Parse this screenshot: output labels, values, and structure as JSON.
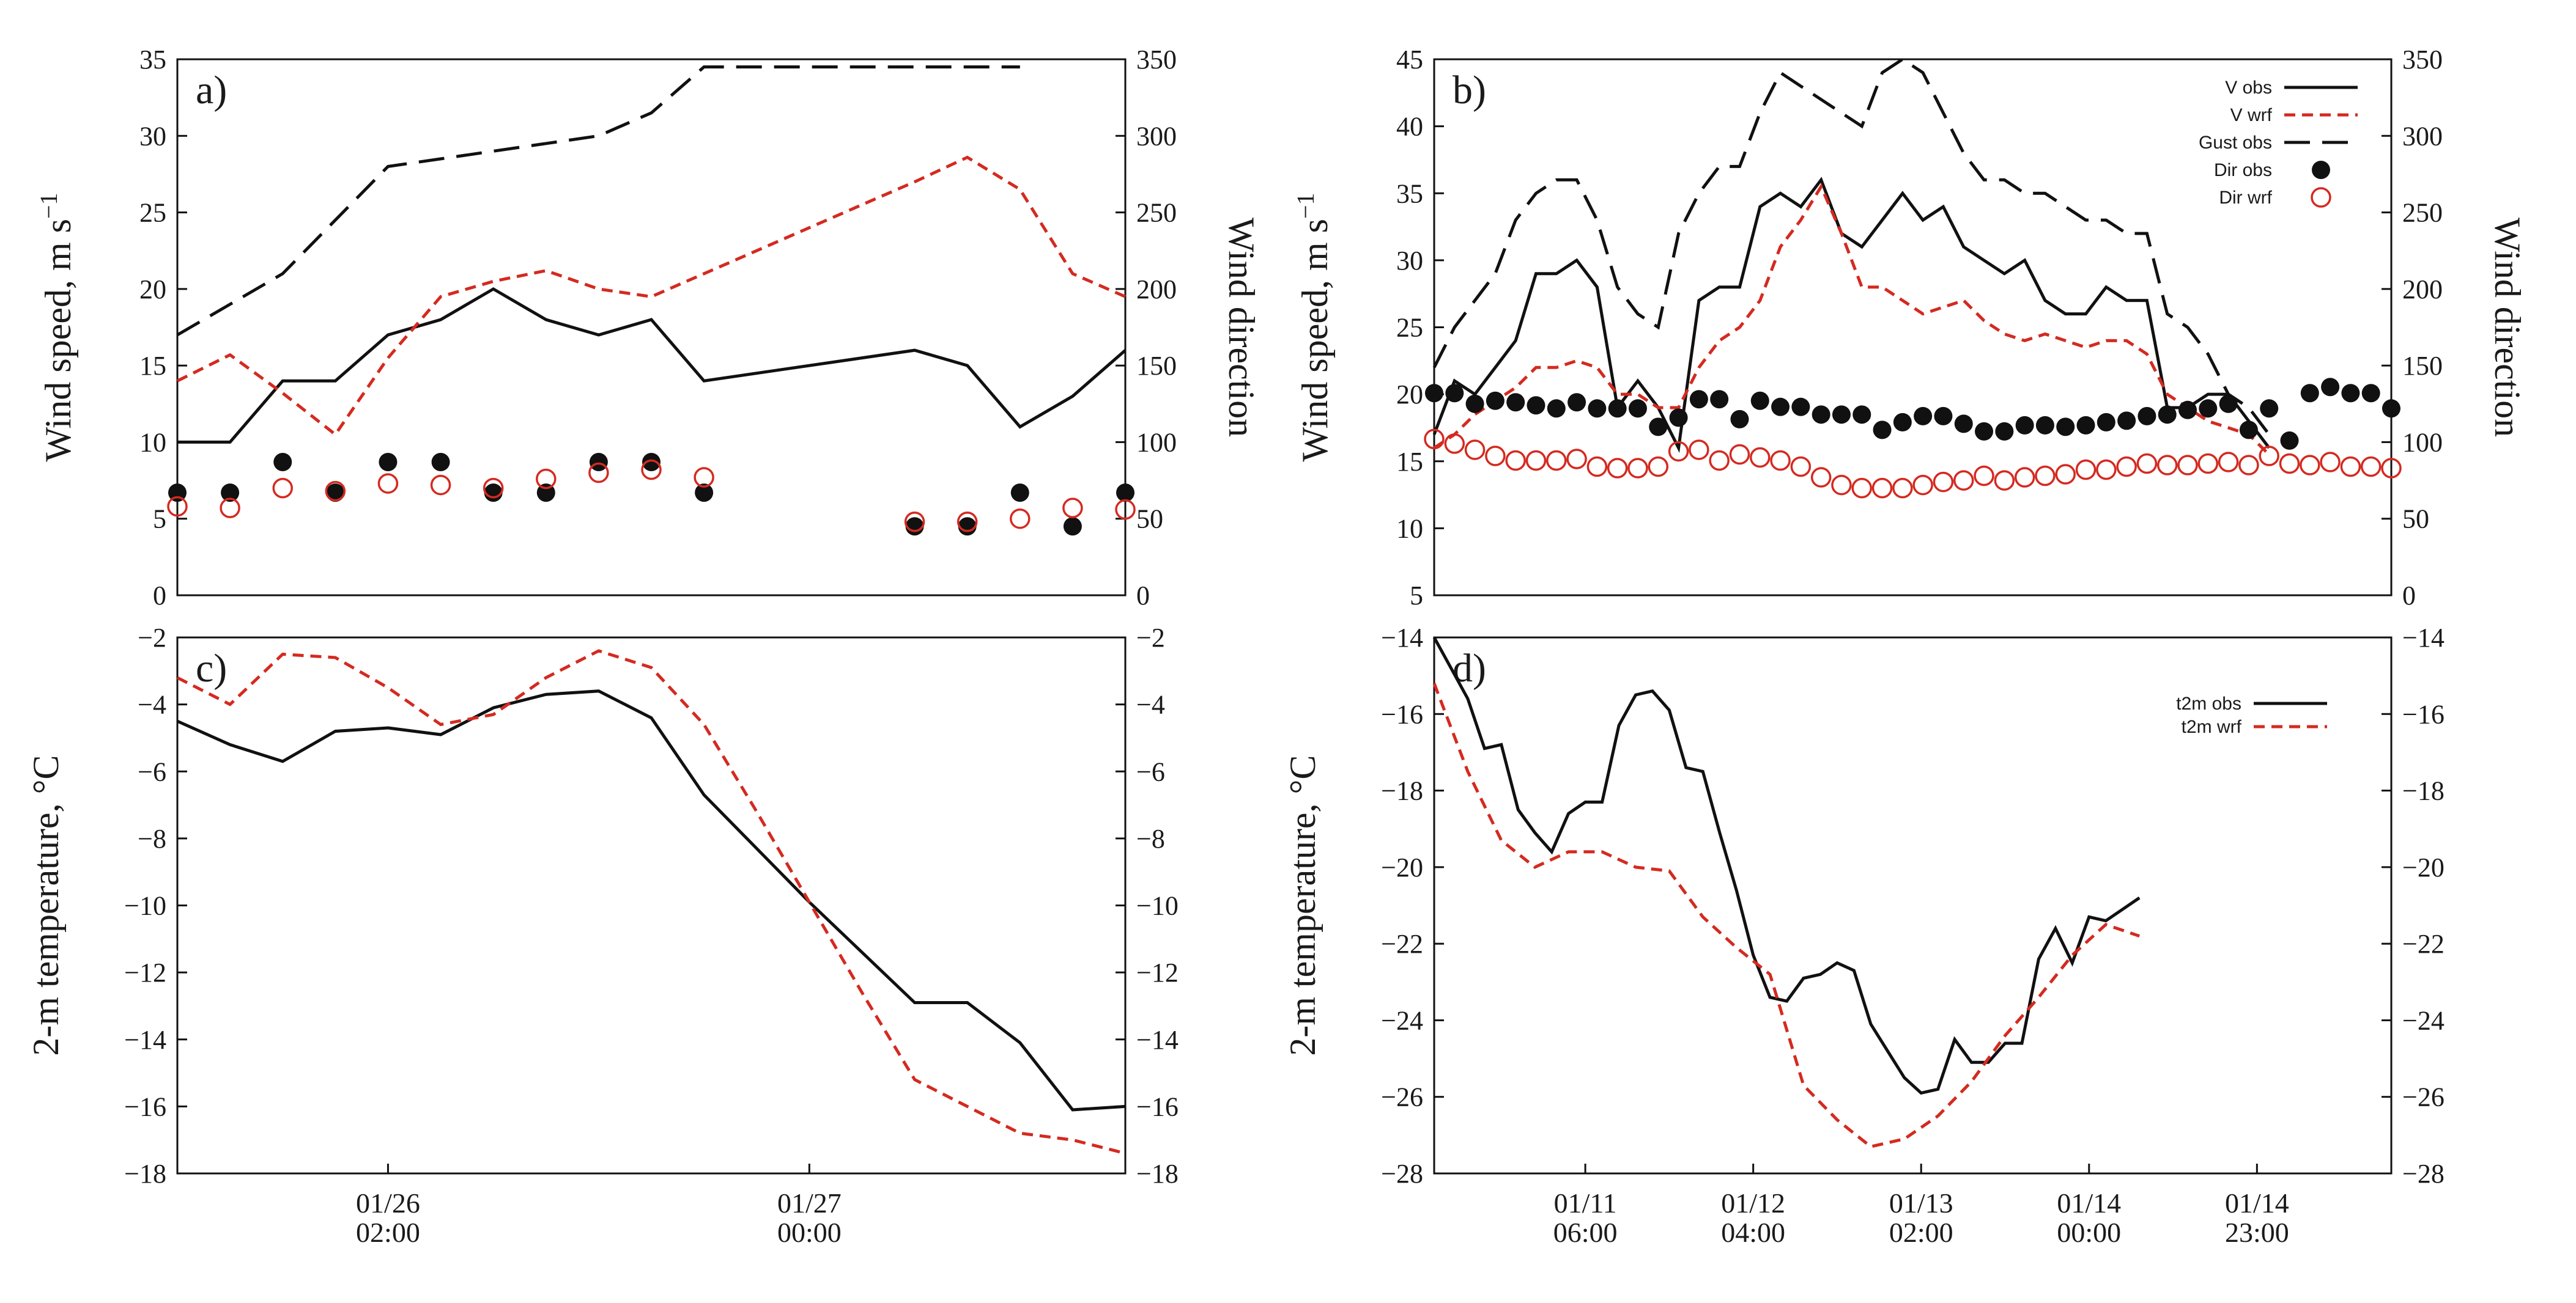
{
  "chart_data": [
    {
      "id": "a",
      "type": "line",
      "panel_label": "a)",
      "ylabel_left": "Wind speed, m s",
      "ylabel_left_exp": "−1",
      "ylabel_right": "Wind direction",
      "ylim_left": [
        0,
        35
      ],
      "ylim_right": [
        0,
        350
      ],
      "yticks_left": [
        "0",
        "5",
        "10",
        "15",
        "20",
        "25",
        "30",
        "35"
      ],
      "yticks_right": [
        "0",
        "50",
        "100",
        "150",
        "200",
        "250",
        "300",
        "350"
      ],
      "x": [
        0,
        1,
        2,
        3,
        4,
        5,
        6,
        7,
        8,
        9,
        10,
        11,
        12,
        13,
        14,
        15,
        16,
        17,
        18
      ],
      "series": [
        {
          "name": "V obs",
          "axis": "left",
          "style": "solid-black",
          "values": [
            10,
            10,
            14,
            14,
            17,
            18,
            20,
            18,
            17,
            18,
            14,
            null,
            null,
            null,
            16,
            15,
            11,
            13,
            16
          ]
        },
        {
          "name": "V wrf",
          "axis": "left",
          "style": "dashed-red",
          "values": [
            14,
            15.7,
            13.2,
            10.5,
            15.5,
            19.5,
            20.5,
            21.2,
            20,
            19.5,
            21,
            22.5,
            24,
            25.5,
            27,
            28.6,
            26.5,
            21,
            19.5
          ]
        },
        {
          "name": "Gust obs",
          "axis": "left",
          "style": "long-dashed-black",
          "values": [
            17,
            19,
            21,
            24.5,
            28,
            28.5,
            29,
            29.5,
            30,
            31.5,
            34.5,
            34.5,
            34.5,
            34.5,
            34.5,
            34.5,
            34.5,
            null,
            null
          ]
        },
        {
          "name": "Dir obs",
          "axis": "right",
          "style": "filled-dots",
          "values": [
            67,
            67,
            87,
            67,
            87,
            87,
            67,
            67,
            87,
            87,
            67,
            null,
            null,
            null,
            45,
            45,
            67,
            45,
            67
          ]
        },
        {
          "name": "Dir wrf",
          "axis": "right",
          "style": "open-red-circles",
          "values": [
            58,
            57,
            70,
            68,
            73,
            72,
            70,
            76,
            80,
            82,
            77,
            null,
            null,
            null,
            48,
            48,
            50,
            57,
            56
          ]
        }
      ]
    },
    {
      "id": "b",
      "type": "line",
      "panel_label": "b)",
      "ylabel_left": "Wind speed, m s",
      "ylabel_left_exp": "−1",
      "ylabel_right": "Wind direction",
      "ylim_left": [
        5,
        45
      ],
      "ylim_right": [
        0,
        350
      ],
      "yticks_left": [
        "5",
        "10",
        "15",
        "20",
        "25",
        "30",
        "35",
        "40",
        "45"
      ],
      "yticks_right": [
        "0",
        "50",
        "100",
        "150",
        "200",
        "250",
        "300",
        "350"
      ],
      "x": [
        0,
        1,
        2,
        3,
        4,
        5,
        6,
        7,
        8,
        9,
        10,
        11,
        12,
        13,
        14,
        15,
        16,
        17,
        18,
        19,
        20,
        21,
        22,
        23,
        24,
        25,
        26,
        27,
        28,
        29,
        30,
        31,
        32,
        33,
        34,
        35,
        36,
        37,
        38,
        39,
        40,
        41,
        42,
        43,
        44,
        45,
        46,
        47
      ],
      "series": [
        {
          "name": "V obs",
          "axis": "left",
          "style": "solid-black",
          "values": [
            17,
            21,
            20,
            22,
            24,
            29,
            29,
            30,
            28,
            19,
            21,
            19,
            16,
            27,
            28,
            28,
            34,
            35,
            34,
            36,
            32,
            31,
            33,
            35,
            33,
            34,
            31,
            30,
            29,
            30,
            27,
            26,
            26,
            28,
            27,
            27,
            19,
            19,
            20,
            20,
            18,
            16,
            null,
            null,
            null,
            null,
            null,
            null
          ]
        },
        {
          "name": "V wrf",
          "axis": "left",
          "style": "dashed-red",
          "values": [
            16,
            17,
            18.5,
            19.5,
            20.5,
            22,
            22,
            22.5,
            22,
            20,
            20,
            19,
            19,
            22,
            24,
            25,
            27,
            31,
            33,
            35.5,
            32,
            28,
            28,
            27,
            26,
            26.5,
            27,
            25.5,
            24.5,
            24,
            24.5,
            24,
            23.5,
            24,
            24,
            23,
            20,
            19,
            18,
            17.5,
            17,
            15.5,
            null,
            null,
            null,
            null,
            null,
            null
          ]
        },
        {
          "name": "Gust obs",
          "axis": "left",
          "style": "long-dashed-black",
          "values": [
            22,
            25,
            27,
            29,
            33,
            35,
            36,
            36,
            33,
            28,
            26,
            25,
            32,
            35,
            37,
            37,
            41,
            44,
            43,
            42,
            41,
            40,
            44,
            45,
            44,
            41,
            38,
            36,
            36,
            35,
            35,
            34,
            33,
            33,
            32,
            32,
            26,
            25,
            23,
            20,
            19,
            17,
            null,
            null,
            null,
            null,
            null,
            null
          ]
        },
        {
          "name": "Dir obs",
          "axis": "right",
          "style": "filled-dots",
          "values": [
            132,
            132,
            125,
            127,
            126,
            124,
            122,
            126,
            122,
            122,
            122,
            110,
            116,
            128,
            128,
            115,
            127,
            123,
            123,
            118,
            118,
            118,
            108,
            113,
            117,
            117,
            112,
            107,
            107,
            111,
            111,
            110,
            111,
            113,
            114,
            117,
            118,
            121,
            122,
            125,
            108,
            122,
            101,
            132,
            136,
            132,
            132,
            122
          ]
        },
        {
          "name": "Dir wrf",
          "axis": "right",
          "style": "open-red-circles",
          "values": [
            102,
            99,
            95,
            91,
            88,
            88,
            88,
            89,
            84,
            83,
            83,
            84,
            94,
            95,
            88,
            92,
            90,
            88,
            84,
            77,
            72,
            70,
            70,
            70,
            72,
            74,
            75,
            78,
            75,
            77,
            78,
            79,
            82,
            82,
            84,
            86,
            85,
            85,
            86,
            87,
            85,
            91,
            86,
            85,
            87,
            84,
            84,
            83
          ]
        }
      ]
    },
    {
      "id": "c",
      "type": "line",
      "panel_label": "c)",
      "ylabel_left": "2-m temperature, °C",
      "ylim_left": [
        -18,
        -2
      ],
      "ylim_right": [
        -18,
        -2
      ],
      "yticks_left": [
        "−18",
        "−16",
        "−14",
        "−12",
        "−10",
        "−8",
        "−6",
        "−4",
        "−2"
      ],
      "yticks_right": [
        "−18",
        "−16",
        "−14",
        "−12",
        "−10",
        "−8",
        "−6",
        "−4",
        "−2"
      ],
      "xticks": [
        {
          "line1": "01/26",
          "line2": "02:00",
          "at": 4
        },
        {
          "line1": "01/27",
          "line2": "00:00",
          "at": 12
        }
      ],
      "x": [
        0,
        1,
        2,
        3,
        4,
        5,
        6,
        7,
        8,
        9,
        10,
        11,
        12,
        13,
        14,
        15,
        16,
        17,
        18
      ],
      "series": [
        {
          "name": "t2m obs",
          "style": "solid-black",
          "values": [
            -4.5,
            -5.2,
            -5.7,
            -4.8,
            -4.7,
            -4.9,
            -4.1,
            -3.7,
            -3.6,
            -4.4,
            -6.7,
            -8.3,
            -9.9,
            -11.4,
            -12.9,
            -12.9,
            -14.1,
            -16.1,
            -16.0
          ]
        },
        {
          "name": "t2m wrf",
          "style": "dashed-red",
          "values": [
            -3.2,
            -4.0,
            -2.5,
            -2.6,
            -3.5,
            -4.6,
            -4.3,
            -3.2,
            -2.4,
            -2.9,
            -4.6,
            -7.2,
            -9.9,
            -12.6,
            -15.2,
            -16.0,
            -16.8,
            -17.0,
            -17.4
          ]
        }
      ]
    },
    {
      "id": "d",
      "type": "line",
      "panel_label": "d)",
      "ylabel_left": "2-m temperature, °C",
      "ylim_left": [
        -28,
        -14
      ],
      "ylim_right": [
        -28,
        -14
      ],
      "yticks_left": [
        "−28",
        "−26",
        "−24",
        "−22",
        "−20",
        "−18",
        "−16",
        "−14"
      ],
      "yticks_right": [
        "−28",
        "−26",
        "−24",
        "−22",
        "−20",
        "−18",
        "−16",
        "−14"
      ],
      "xticks": [
        {
          "line1": "01/11",
          "line2": "06:00",
          "at": 9
        },
        {
          "line1": "01/12",
          "line2": "04:00",
          "at": 19
        },
        {
          "line1": "01/13",
          "line2": "02:00",
          "at": 29
        },
        {
          "line1": "01/14",
          "line2": "00:00",
          "at": 39
        },
        {
          "line1": "01/14",
          "line2": "23:00",
          "at": 49
        }
      ],
      "x_max": 57,
      "series": [
        {
          "name": "t2m obs",
          "style": "solid-black",
          "points": [
            [
              0,
              -14
            ],
            [
              1,
              -14.8
            ],
            [
              2,
              -15.6
            ],
            [
              3,
              -16.9
            ],
            [
              4,
              -16.8
            ],
            [
              5,
              -18.5
            ],
            [
              6,
              -19.1
            ],
            [
              7,
              -19.6
            ],
            [
              8,
              -18.6
            ],
            [
              9,
              -18.3
            ],
            [
              10,
              -18.3
            ],
            [
              11,
              -16.3
            ],
            [
              12,
              -15.5
            ],
            [
              13,
              -15.4
            ],
            [
              14,
              -15.9
            ],
            [
              15,
              -17.4
            ],
            [
              16,
              -17.5
            ],
            [
              17,
              -19.1
            ],
            [
              18,
              -20.6
            ],
            [
              19,
              -22.3
            ],
            [
              20,
              -23.4
            ],
            [
              21,
              -23.5
            ],
            [
              22,
              -22.9
            ],
            [
              23,
              -22.8
            ],
            [
              24,
              -22.5
            ],
            [
              25,
              -22.7
            ],
            [
              26,
              -24.1
            ],
            [
              27,
              -24.8
            ],
            [
              28,
              -25.5
            ],
            [
              29,
              -25.9
            ],
            [
              30,
              -25.8
            ],
            [
              31,
              -24.5
            ],
            [
              32,
              -25.1
            ],
            [
              33,
              -25.1
            ],
            [
              34,
              -24.6
            ],
            [
              35,
              -24.6
            ],
            [
              36,
              -22.4
            ],
            [
              37,
              -21.6
            ],
            [
              38,
              -22.5
            ],
            [
              39,
              -21.3
            ],
            [
              40,
              -21.4
            ],
            [
              41,
              -21.1
            ],
            [
              42,
              -20.8
            ]
          ]
        },
        {
          "name": "t2m wrf",
          "style": "dashed-red",
          "points": [
            [
              0,
              -15.2
            ],
            [
              2,
              -17.5
            ],
            [
              4,
              -19.3
            ],
            [
              6,
              -20.0
            ],
            [
              8,
              -19.6
            ],
            [
              10,
              -19.6
            ],
            [
              12,
              -20.0
            ],
            [
              14,
              -20.1
            ],
            [
              16,
              -21.3
            ],
            [
              18,
              -22.1
            ],
            [
              20,
              -22.8
            ],
            [
              22,
              -25.7
            ],
            [
              24,
              -26.6
            ],
            [
              26,
              -27.3
            ],
            [
              27,
              -27.2
            ],
            [
              28,
              -27.1
            ],
            [
              30,
              -26.5
            ],
            [
              32,
              -25.6
            ],
            [
              34,
              -24.4
            ],
            [
              36,
              -23.4
            ],
            [
              38,
              -22.3
            ],
            [
              40,
              -21.5
            ],
            [
              42,
              -21.8
            ]
          ]
        }
      ]
    }
  ],
  "legends": {
    "b": [
      {
        "label": "V obs",
        "style": "solid-black"
      },
      {
        "label": "V wrf",
        "style": "dashed-red"
      },
      {
        "label": "Gust obs",
        "style": "long-dashed-black"
      },
      {
        "label": "Dir obs",
        "style": "filled-dots"
      },
      {
        "label": "Dir wrf",
        "style": "open-red-circles"
      }
    ],
    "d": [
      {
        "label": "t2m obs",
        "style": "solid-black"
      },
      {
        "label": "t2m wrf",
        "style": "dashed-red"
      }
    ]
  },
  "colors": {
    "obs": "#111111",
    "wrf": "#d42a20"
  }
}
